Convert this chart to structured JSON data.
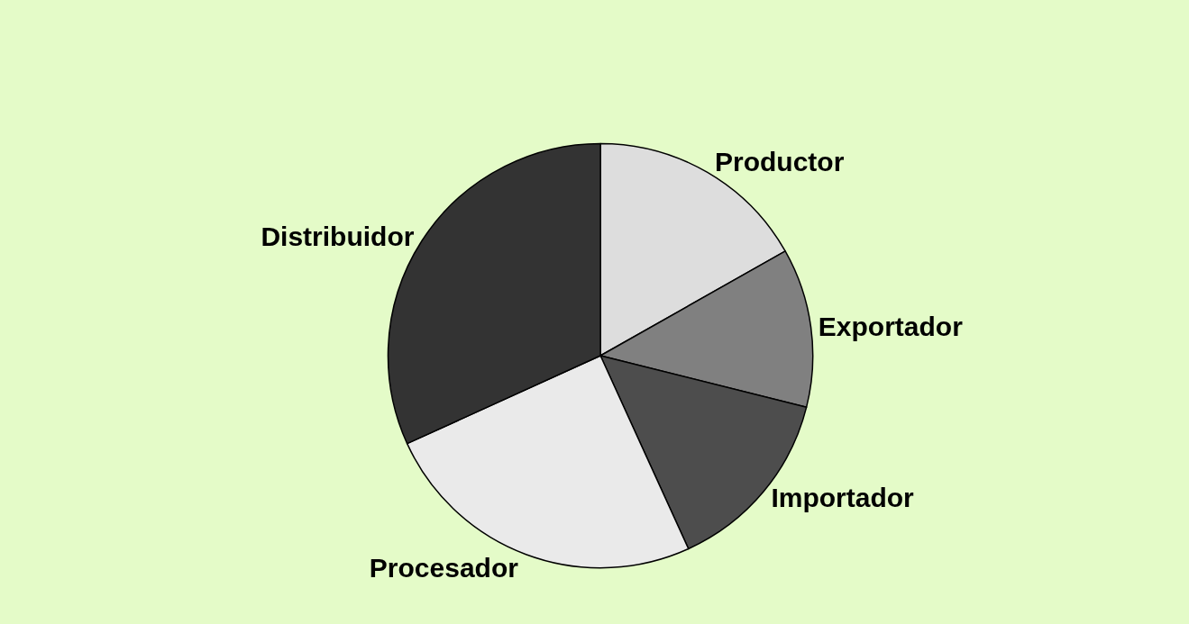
{
  "chart_data": {
    "type": "pie",
    "categories": [
      "Productor",
      "Exportador",
      "Importador",
      "Procesador",
      "Distribuidor"
    ],
    "values": [
      16.8,
      12.1,
      14.3,
      25.0,
      31.8
    ],
    "colors": [
      "#dddddd",
      "#808080",
      "#4d4d4d",
      "#eaeaea",
      "#333333"
    ],
    "legend": false
  }
}
